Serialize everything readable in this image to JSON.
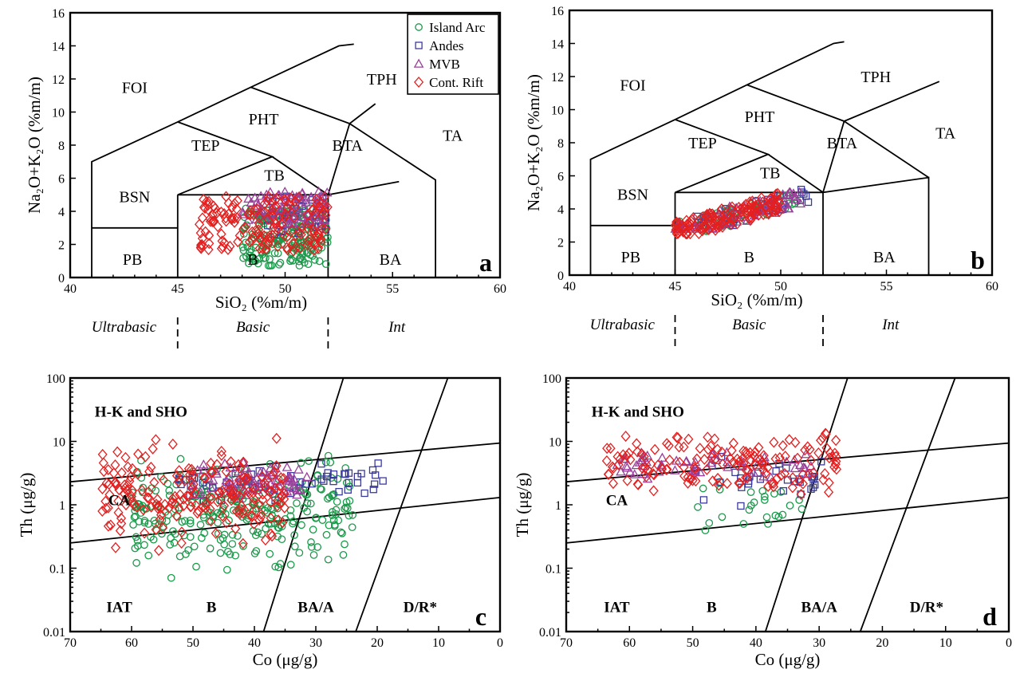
{
  "colors": {
    "island_arc": "#1a9a4a",
    "andes": "#3b3b9e",
    "mvb": "#9a3f9a",
    "cont_rift": "#e32020"
  },
  "legend": [
    "Island Arc",
    "Andes",
    "MVB",
    "Cont. Rift"
  ],
  "tas": {
    "xlabel": "SiO₂ (%m/m)",
    "ylabel": "Na₂O+K₂O (%m/m)",
    "xticks": [
      "40",
      "45",
      "50",
      "55",
      "60"
    ],
    "yticks": [
      "0",
      "2",
      "4",
      "6",
      "8",
      "10",
      "12",
      "14",
      "16"
    ],
    "fields": [
      "FOI",
      "TPH",
      "PHT",
      "TEP",
      "TA",
      "BTA",
      "TB",
      "BSN",
      "PB",
      "B",
      "BA"
    ],
    "classes": [
      "Ultrabasic",
      "Basic",
      "Int"
    ]
  },
  "thco": {
    "xlabel": "Co (μg/g)",
    "ylabel": "Th (μg/g)",
    "xticks": [
      "70",
      "60",
      "50",
      "40",
      "30",
      "20",
      "10",
      "0"
    ],
    "yticks": [
      "0.01",
      "0.1",
      "1",
      "10",
      "100"
    ],
    "fields": [
      "H-K and SHO",
      "CA",
      "IAT",
      "B",
      "BA/A",
      "D/R*"
    ]
  },
  "panels": [
    "a",
    "b",
    "c",
    "d"
  ],
  "chart_data": [
    {
      "panel": "a",
      "type": "scatter",
      "xlabel": "SiO₂ (%m/m)",
      "ylabel": "Na₂O+K₂O (%m/m)",
      "xlim": [
        40,
        60
      ],
      "ylim": [
        0,
        16
      ],
      "legend": "top-right",
      "series": [
        {
          "name": "Island Arc",
          "marker": "circle",
          "x_range": [
            48,
            52
          ],
          "y_range": [
            0.7,
            4.2
          ],
          "count": 200
        },
        {
          "name": "Andes",
          "marker": "square",
          "x_range": [
            49,
            52
          ],
          "y_range": [
            2.6,
            5.0
          ],
          "count": 30
        },
        {
          "name": "MVB",
          "marker": "triangle",
          "x_range": [
            48,
            52
          ],
          "y_range": [
            3.2,
            5.2
          ],
          "count": 80
        },
        {
          "name": "Cont. Rift",
          "marker": "diamond",
          "x_range": [
            46,
            52
          ],
          "y_range": [
            1.6,
            5.0
          ],
          "count": 160
        }
      ]
    },
    {
      "panel": "b",
      "type": "scatter",
      "xlabel": "SiO₂ (%m/m)",
      "ylabel": "Na₂O+K₂O (%m/m)",
      "xlim": [
        40,
        60
      ],
      "ylim": [
        0,
        16
      ],
      "series": [
        {
          "name": "Island Arc",
          "marker": "circle",
          "x_range": [
            45,
            51
          ],
          "y_range": [
            2.4,
            4.8
          ],
          "count": 60
        },
        {
          "name": "Andes",
          "marker": "square",
          "x_range": [
            46,
            51.5
          ],
          "y_range": [
            3.0,
            5.3
          ],
          "count": 30
        },
        {
          "name": "MVB",
          "marker": "triangle",
          "x_range": [
            45,
            51
          ],
          "y_range": [
            2.8,
            5.0
          ],
          "count": 70
        },
        {
          "name": "Cont. Rift",
          "marker": "diamond",
          "x_range": [
            45,
            50
          ],
          "y_range": [
            2.5,
            5.0
          ],
          "count": 130
        }
      ]
    },
    {
      "panel": "c",
      "type": "scatter",
      "xlabel": "Co (μg/g)",
      "ylabel": "Th (μg/g)",
      "xlim": [
        70,
        0
      ],
      "ylim": [
        0.01,
        100
      ],
      "yscale": "log",
      "series": [
        {
          "name": "Island Arc",
          "marker": "circle",
          "x_range": [
            24,
            60
          ],
          "y_range": [
            0.045,
            10
          ],
          "count": 280
        },
        {
          "name": "Andes",
          "marker": "square",
          "x_range": [
            19,
            53
          ],
          "y_range": [
            0.9,
            6
          ],
          "count": 60
        },
        {
          "name": "MVB",
          "marker": "triangle",
          "x_range": [
            31,
            50
          ],
          "y_range": [
            1.0,
            6
          ],
          "count": 70
        },
        {
          "name": "Cont. Rift",
          "marker": "diamond",
          "x_range": [
            35,
            65
          ],
          "y_range": [
            0.15,
            14
          ],
          "count": 200
        }
      ]
    },
    {
      "panel": "d",
      "type": "scatter",
      "xlabel": "Co (μg/g)",
      "ylabel": "Th (μg/g)",
      "xlim": [
        70,
        0
      ],
      "ylim": [
        0.01,
        100
      ],
      "yscale": "log",
      "series": [
        {
          "name": "Island Arc",
          "marker": "circle",
          "x_range": [
            30,
            52
          ],
          "y_range": [
            0.32,
            4
          ],
          "count": 25
        },
        {
          "name": "Andes",
          "marker": "square",
          "x_range": [
            29,
            51
          ],
          "y_range": [
            0.8,
            8
          ],
          "count": 30
        },
        {
          "name": "MVB",
          "marker": "triangle",
          "x_range": [
            31,
            62
          ],
          "y_range": [
            2,
            9
          ],
          "count": 60
        },
        {
          "name": "Cont. Rift",
          "marker": "diamond",
          "x_range": [
            27,
            64
          ],
          "y_range": [
            1,
            20
          ],
          "count": 150
        }
      ]
    }
  ]
}
